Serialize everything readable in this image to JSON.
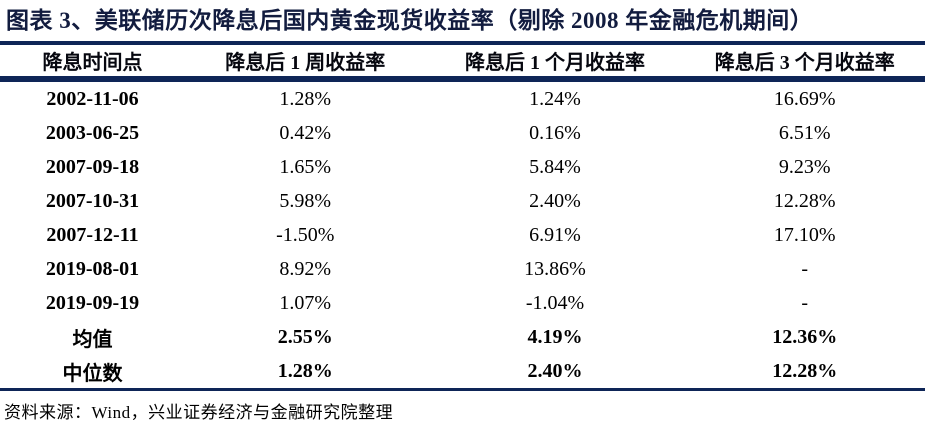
{
  "figure": {
    "title": "图表 3、美联储历次降息后国内黄金现货收益率（剔除 2008 年金融危机期间）",
    "source_note": "资料来源：Wind，兴业证券经济与金融研究院整理"
  },
  "colors": {
    "accent_navy": "#0E2557",
    "title_text": "#121C3F",
    "body_text": "#000000",
    "background": "#FFFFFF"
  },
  "chart_data": {
    "type": "table",
    "title": "图表 3、美联储历次降息后国内黄金现货收益率（剔除 2008 年金融危机期间）",
    "columns": [
      "降息时间点",
      "降息后 1 周收益率",
      "降息后 1 个月收益率",
      "降息后 3 个月收益率"
    ],
    "rows": [
      [
        "2002-11-06",
        "1.28%",
        "1.24%",
        "16.69%"
      ],
      [
        "2003-06-25",
        "0.42%",
        "0.16%",
        "6.51%"
      ],
      [
        "2007-09-18",
        "1.65%",
        "5.84%",
        "9.23%"
      ],
      [
        "2007-10-31",
        "5.98%",
        "2.40%",
        "12.28%"
      ],
      [
        "2007-12-11",
        "-1.50%",
        "6.91%",
        "17.10%"
      ],
      [
        "2019-08-01",
        "8.92%",
        "13.86%",
        "-"
      ],
      [
        "2019-09-19",
        "1.07%",
        "-1.04%",
        "-"
      ],
      [
        "均值",
        "2.55%",
        "4.19%",
        "12.36%"
      ],
      [
        "中位数",
        "1.28%",
        "2.40%",
        "12.28%"
      ]
    ],
    "summary_row_labels": [
      "均值",
      "中位数"
    ],
    "source": "资料来源：Wind，兴业证券经济与金融研究院整理"
  }
}
